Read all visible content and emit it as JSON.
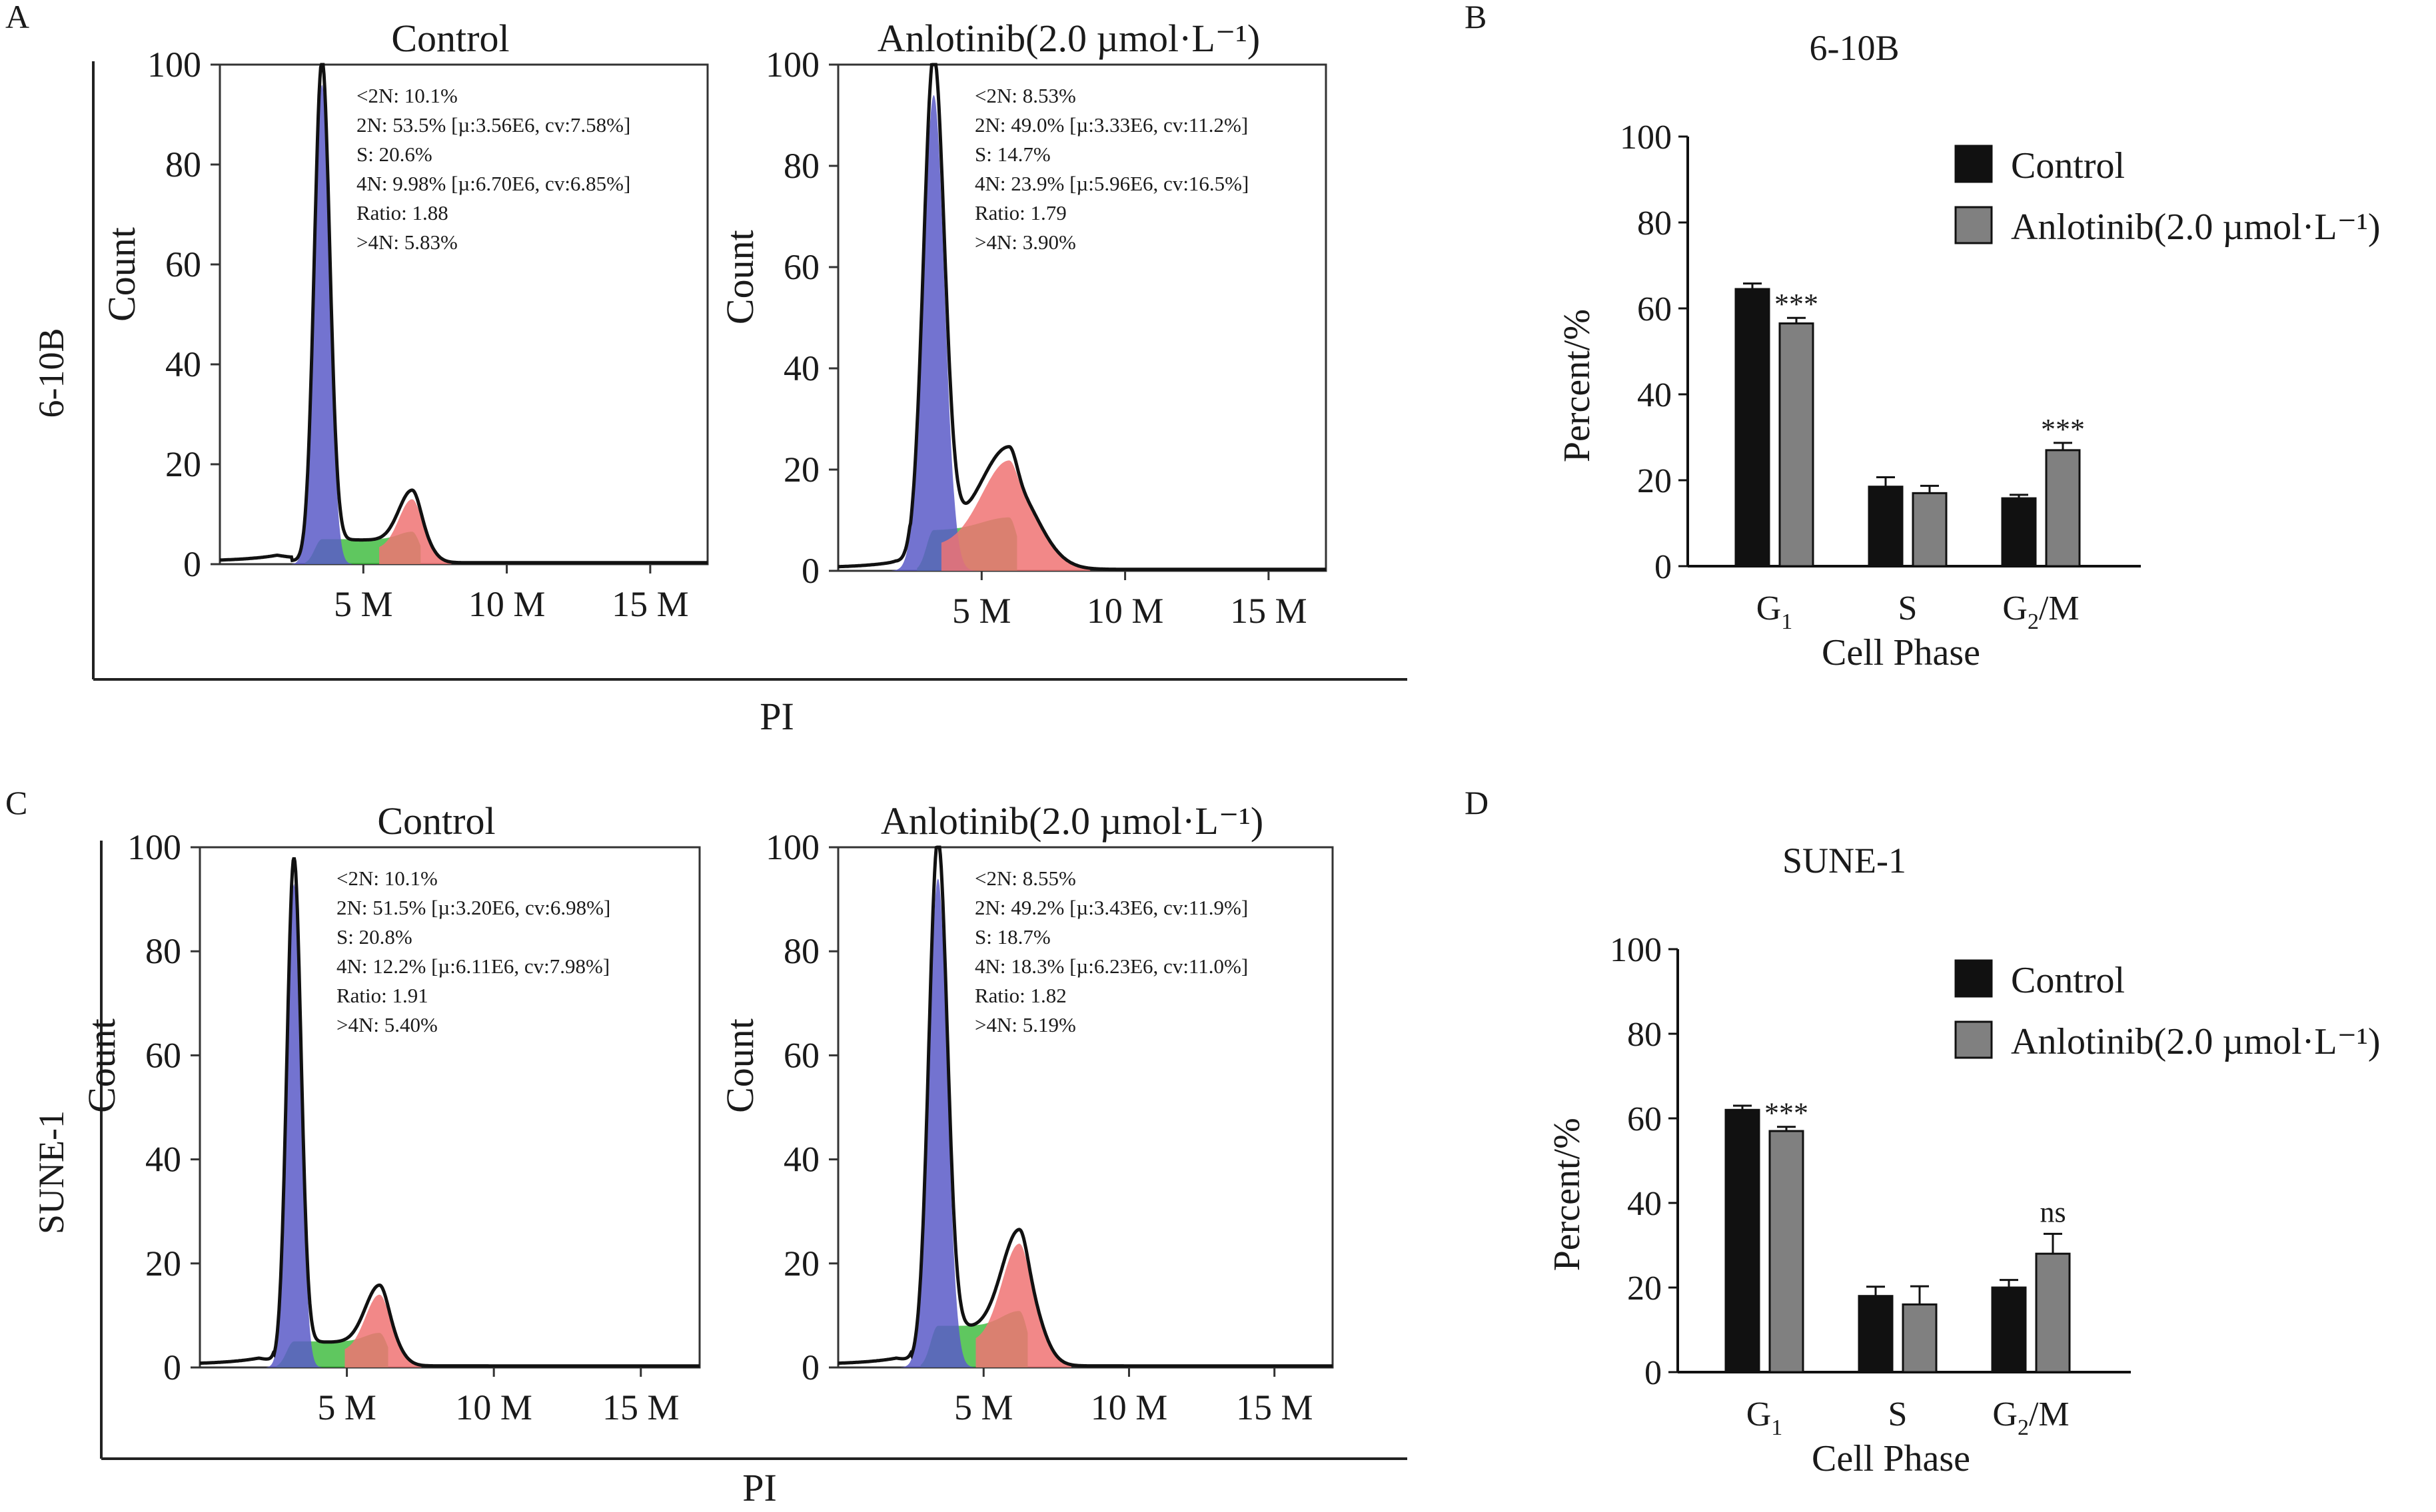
{
  "figure": {
    "panel_letters": [
      "A",
      "B",
      "C",
      "D"
    ],
    "row_labels": [
      "6-10B",
      "SUNE-1"
    ],
    "hist_xlabel": "PI",
    "hist_ylabel": "Count"
  },
  "chart_data": [
    {
      "panel": "A",
      "type": "area",
      "title": "Control",
      "cell_line": "6-10B",
      "xlabel": "",
      "ylabel": "Count",
      "xlim": [
        0,
        17
      ],
      "ylim": [
        0,
        100
      ],
      "x_ticks": [
        "5 M",
        "10 M",
        "15 M"
      ],
      "y_ticks": [
        "0",
        "20",
        "40",
        "60",
        "80",
        "100"
      ],
      "stats": [
        "<2N: 10.1%",
        "2N: 53.5% [µ:3.56E6, cv:7.58%]",
        "S: 20.6%",
        "4N: 9.98% [µ:6.70E6, cv:6.85%]",
        "Ratio: 1.88",
        ">4N: 5.83%"
      ],
      "peaks": {
        "g1_x": 3.56,
        "g1_height": 96,
        "g1_sigma": 0.27,
        "s_level": 5,
        "g2_x": 6.7,
        "g2_height": 10,
        "g2_sigma": 0.46
      },
      "colors": {
        "g1": "#5b5bc8",
        "s": "#37b937",
        "g2": "#f07373"
      }
    },
    {
      "panel": "A",
      "type": "area",
      "title": "Anlotinib(2.0 µmol·L⁻¹)",
      "cell_line": "6-10B",
      "xlabel": "",
      "ylabel": "Count",
      "xlim": [
        0,
        17
      ],
      "ylim": [
        0,
        100
      ],
      "x_ticks": [
        "5 M",
        "10 M",
        "15 M"
      ],
      "y_ticks": [
        "0",
        "20",
        "40",
        "60",
        "80",
        "100"
      ],
      "stats": [
        "<2N: 8.53%",
        "2N: 49.0% [µ:3.33E6, cv:11.2%]",
        "S: 14.7%",
        "4N: 23.9% [µ:5.96E6, cv:16.5%]",
        "Ratio: 1.79",
        ">4N: 3.90%"
      ],
      "peaks": {
        "g1_x": 3.33,
        "g1_height": 94,
        "g1_sigma": 0.37,
        "s_level": 8,
        "g2_x": 5.96,
        "g2_height": 17,
        "g2_sigma": 0.95
      },
      "colors": {
        "g1": "#5b5bc8",
        "s": "#37b937",
        "g2": "#f07373"
      }
    },
    {
      "panel": "C",
      "type": "area",
      "title": "Control",
      "cell_line": "SUNE-1",
      "xlabel": "",
      "ylabel": "Count",
      "xlim": [
        0,
        17
      ],
      "ylim": [
        0,
        100
      ],
      "x_ticks": [
        "5 M",
        "10 M",
        "15 M"
      ],
      "y_ticks": [
        "0",
        "20",
        "40",
        "60",
        "80",
        "100"
      ],
      "stats": [
        "<2N: 10.1%",
        "2N: 51.5% [µ:3.20E6, cv:6.98%]",
        "S: 20.8%",
        "4N: 12.2% [µ:6.11E6, cv:7.98%]",
        "Ratio: 1.91",
        ">4N: 5.40%"
      ],
      "peaks": {
        "g1_x": 3.2,
        "g1_height": 93,
        "g1_sigma": 0.24,
        "s_level": 5,
        "g2_x": 6.11,
        "g2_height": 11,
        "g2_sigma": 0.48
      },
      "colors": {
        "g1": "#5b5bc8",
        "s": "#37b937",
        "g2": "#f07373"
      }
    },
    {
      "panel": "C",
      "type": "area",
      "title": "Anlotinib(2.0 µmol·L⁻¹)",
      "cell_line": "SUNE-1",
      "xlabel": "",
      "ylabel": "Count",
      "xlim": [
        0,
        17
      ],
      "ylim": [
        0,
        100
      ],
      "x_ticks": [
        "5 M",
        "10 M",
        "15 M"
      ],
      "y_ticks": [
        "0",
        "20",
        "40",
        "60",
        "80",
        "100"
      ],
      "stats": [
        "<2N: 8.55%",
        "2N: 49.2% [µ:3.43E6, cv:11.9%]",
        "S: 18.7%",
        "4N: 18.3% [µ:6.23E6, cv:11.0%]",
        "Ratio: 1.82",
        ">4N: 5.19%"
      ],
      "peaks": {
        "g1_x": 3.43,
        "g1_height": 94,
        "g1_sigma": 0.32,
        "s_level": 8,
        "g2_x": 6.23,
        "g2_height": 19,
        "g2_sigma": 0.6
      },
      "colors": {
        "g1": "#5b5bc8",
        "s": "#37b937",
        "g2": "#f07373"
      }
    },
    {
      "panel": "B",
      "type": "bar",
      "title": "6-10B",
      "categories": [
        "G1",
        "S",
        "G2/M"
      ],
      "xlabel": "Cell Phase",
      "ylabel": "Percent/%",
      "ylim": [
        0,
        100
      ],
      "y_ticks": [
        "0",
        "20",
        "40",
        "60",
        "80",
        "100"
      ],
      "series": [
        {
          "name": "Control",
          "values": [
            64.5,
            18.5,
            15.8
          ],
          "errors": [
            1.3,
            2.2,
            0.8
          ],
          "color": "#111111"
        },
        {
          "name": "Anlotinib(2.0 µmol·L⁻¹)",
          "values": [
            56.5,
            17,
            27
          ],
          "errors": [
            1.3,
            1.7,
            1.7
          ],
          "color": "#808080"
        }
      ],
      "significance": [
        "***",
        "",
        "***"
      ],
      "legend": "top-right"
    },
    {
      "panel": "D",
      "type": "bar",
      "title": "SUNE-1",
      "categories": [
        "G1",
        "S",
        "G2/M"
      ],
      "xlabel": "Cell Phase",
      "ylabel": "Percent/%",
      "ylim": [
        0,
        100
      ],
      "y_ticks": [
        "0",
        "20",
        "40",
        "60",
        "80",
        "100"
      ],
      "series": [
        {
          "name": "Control",
          "values": [
            62,
            18,
            20
          ],
          "errors": [
            1,
            2.2,
            1.8
          ],
          "color": "#111111"
        },
        {
          "name": "Anlotinib(2.0 µmol·L⁻¹)",
          "values": [
            57,
            16,
            28
          ],
          "errors": [
            1,
            4.3,
            4.7
          ],
          "color": "#808080"
        }
      ],
      "significance": [
        "***",
        "",
        "ns"
      ],
      "legend": "top-right"
    }
  ]
}
